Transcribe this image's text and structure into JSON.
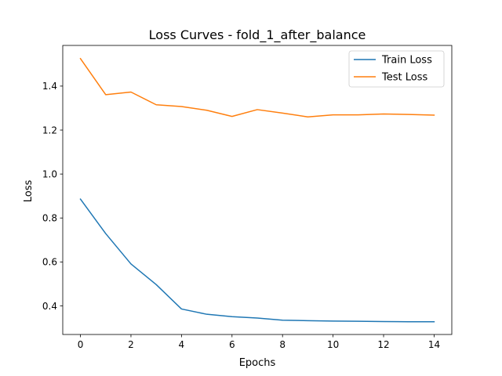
{
  "chart_data": {
    "type": "line",
    "title": "Loss Curves - fold_1_after_balance",
    "xlabel": "Epochs",
    "ylabel": "Loss",
    "x": [
      0,
      1,
      2,
      3,
      4,
      5,
      6,
      7,
      8,
      9,
      10,
      11,
      12,
      13,
      14
    ],
    "xlim": [
      -0.7,
      14.7
    ],
    "ylim": [
      0.27,
      1.585
    ],
    "xticks": [
      0,
      2,
      4,
      6,
      8,
      10,
      12,
      14
    ],
    "xtick_labels": [
      "0",
      "2",
      "4",
      "6",
      "8",
      "10",
      "12",
      "14"
    ],
    "yticks": [
      0.4,
      0.6,
      0.8,
      1.0,
      1.2,
      1.4
    ],
    "ytick_labels": [
      "0.4",
      "0.6",
      "0.8",
      "1.0",
      "1.2",
      "1.4"
    ],
    "grid": false,
    "legend_position": "top-right",
    "series": [
      {
        "name": "Train Loss",
        "color": "#1f77b4",
        "values": [
          0.886,
          0.729,
          0.591,
          0.497,
          0.386,
          0.362,
          0.351,
          0.345,
          0.335,
          0.333,
          0.331,
          0.33,
          0.329,
          0.328,
          0.328
        ]
      },
      {
        "name": "Test Loss",
        "color": "#ff7f0e",
        "values": [
          1.525,
          1.361,
          1.373,
          1.315,
          1.307,
          1.29,
          1.262,
          1.293,
          1.277,
          1.26,
          1.269,
          1.269,
          1.273,
          1.271,
          1.268
        ]
      }
    ]
  }
}
